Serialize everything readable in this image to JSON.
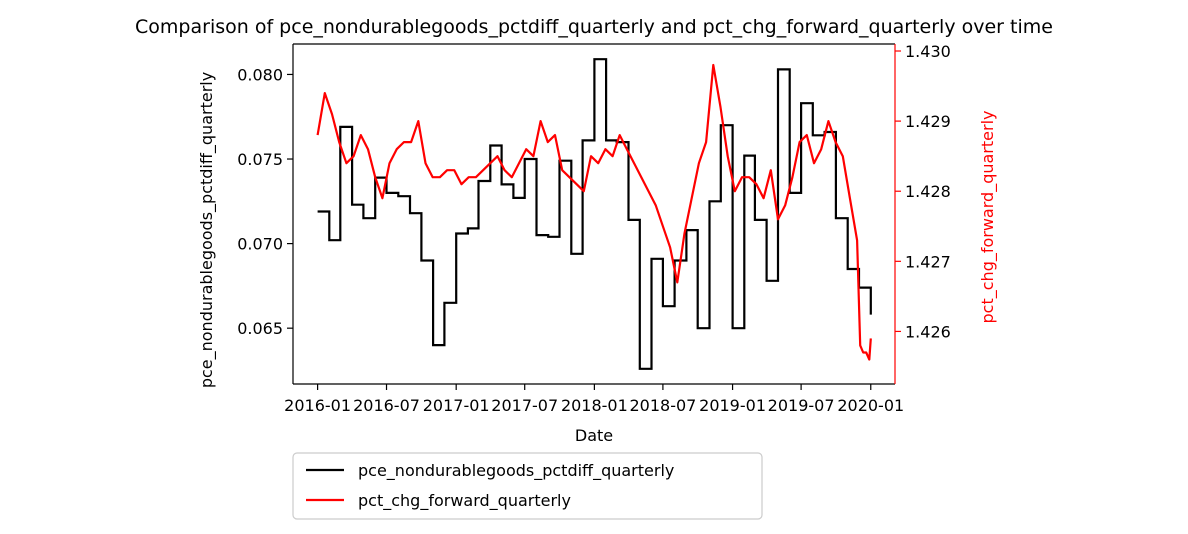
{
  "chart_data": {
    "type": "line",
    "title": "Comparison of pce_nondurablegoods_pctdiff_quarterly and pct_chg_forward_quarterly over time",
    "xlabel": "Date",
    "ylabel_left": "pce_nondurablegoods_pctdiff_quarterly",
    "ylabel_right": "pct_chg_forward_quarterly",
    "x_ticks": [
      "2016-01",
      "2016-07",
      "2017-01",
      "2017-07",
      "2018-01",
      "2018-07",
      "2019-01",
      "2019-07",
      "2020-01"
    ],
    "xlim": [
      "2015-10-28",
      "2020-03-05"
    ],
    "y_left_ticks": [
      "0.065",
      "0.070",
      "0.075",
      "0.080"
    ],
    "y_left_lim": [
      0.0617,
      0.0818
    ],
    "y_right_ticks": [
      "1.426",
      "1.427",
      "1.428",
      "1.429",
      "1.430"
    ],
    "y_right_lim": [
      1.42525,
      1.4301
    ],
    "legend_placement": "below",
    "colors": {
      "left": "#000000",
      "right": "#ff0000"
    },
    "series": [
      {
        "name": "pce_nondurablegoods_pctdiff_quarterly",
        "axis": "left",
        "style": "step",
        "x": [
          "2016-01-01",
          "2016-02-01",
          "2016-03-01",
          "2016-04-01",
          "2016-05-01",
          "2016-06-01",
          "2016-07-01",
          "2016-08-01",
          "2016-09-01",
          "2016-10-01",
          "2016-11-01",
          "2016-12-01",
          "2017-01-01",
          "2017-02-01",
          "2017-03-01",
          "2017-04-01",
          "2017-05-01",
          "2017-06-01",
          "2017-07-01",
          "2017-08-01",
          "2017-09-01",
          "2017-10-01",
          "2017-11-01",
          "2017-12-01",
          "2018-01-01",
          "2018-02-01",
          "2018-03-01",
          "2018-04-01",
          "2018-05-01",
          "2018-06-01",
          "2018-07-01",
          "2018-08-01",
          "2018-09-01",
          "2018-10-01",
          "2018-11-01",
          "2018-12-01",
          "2019-01-01",
          "2019-02-01",
          "2019-03-01",
          "2019-04-01",
          "2019-05-01",
          "2019-06-01",
          "2019-07-01",
          "2019-08-01",
          "2019-09-01",
          "2019-10-01",
          "2019-11-01",
          "2019-12-01",
          "2020-01-01"
        ],
        "values": [
          0.0719,
          0.0702,
          0.0769,
          0.0723,
          0.0715,
          0.0739,
          0.073,
          0.0728,
          0.0718,
          0.069,
          0.064,
          0.0665,
          0.0706,
          0.0709,
          0.0737,
          0.0758,
          0.0735,
          0.0727,
          0.075,
          0.0705,
          0.0704,
          0.0749,
          0.0694,
          0.0761,
          0.0809,
          0.0761,
          0.076,
          0.0714,
          0.0626,
          0.0691,
          0.0663,
          0.069,
          0.0708,
          0.065,
          0.0725,
          0.077,
          0.065,
          0.0752,
          0.0714,
          0.0678,
          0.0803,
          0.073,
          0.0783,
          0.0764,
          0.0766,
          0.0715,
          0.0685,
          0.0674,
          0.0658
        ]
      },
      {
        "name": "pct_chg_forward_quarterly",
        "axis": "right",
        "style": "line",
        "x": [
          "2016-01-01",
          "2016-01-20",
          "2016-02-08",
          "2016-02-27",
          "2016-03-17",
          "2016-04-05",
          "2016-04-24",
          "2016-05-13",
          "2016-06-01",
          "2016-06-20",
          "2016-07-09",
          "2016-07-28",
          "2016-08-16",
          "2016-09-04",
          "2016-09-23",
          "2016-10-12",
          "2016-10-31",
          "2016-11-19",
          "2016-12-08",
          "2016-12-27",
          "2017-01-15",
          "2017-02-03",
          "2017-02-22",
          "2017-03-13",
          "2017-04-01",
          "2017-04-20",
          "2017-05-09",
          "2017-05-28",
          "2017-06-16",
          "2017-07-05",
          "2017-07-24",
          "2017-08-12",
          "2017-08-31",
          "2017-09-19",
          "2017-10-08",
          "2017-10-27",
          "2017-11-15",
          "2017-12-04",
          "2017-12-23",
          "2018-01-11",
          "2018-01-30",
          "2018-02-18",
          "2018-03-09",
          "2018-03-28",
          "2018-04-16",
          "2018-05-05",
          "2018-05-24",
          "2018-06-12",
          "2018-07-01",
          "2018-07-20",
          "2018-08-08",
          "2018-08-27",
          "2018-09-15",
          "2018-10-04",
          "2018-10-23",
          "2018-11-11",
          "2018-11-30",
          "2018-12-19",
          "2019-01-07",
          "2019-01-26",
          "2019-02-14",
          "2019-03-05",
          "2019-03-24",
          "2019-04-12",
          "2019-05-01",
          "2019-05-20",
          "2019-06-08",
          "2019-06-27",
          "2019-07-16",
          "2019-08-04",
          "2019-08-23",
          "2019-09-11",
          "2019-09-30",
          "2019-10-19",
          "2019-11-07",
          "2019-11-26",
          "2019-12-04",
          "2019-12-12",
          "2019-12-20",
          "2019-12-28",
          "2020-01-01"
        ],
        "values": [
          1.4288,
          1.4294,
          1.4291,
          1.4287,
          1.4284,
          1.4285,
          1.4288,
          1.4286,
          1.4282,
          1.4279,
          1.4284,
          1.4286,
          1.4287,
          1.4287,
          1.429,
          1.4284,
          1.4282,
          1.4282,
          1.4283,
          1.4283,
          1.4281,
          1.4282,
          1.4282,
          1.4283,
          1.4284,
          1.4285,
          1.4283,
          1.4282,
          1.4284,
          1.4286,
          1.4285,
          1.429,
          1.4287,
          1.4288,
          1.4283,
          1.4282,
          1.4281,
          1.428,
          1.4285,
          1.4284,
          1.4286,
          1.4285,
          1.4288,
          1.4286,
          1.4284,
          1.4282,
          1.428,
          1.4278,
          1.4275,
          1.4272,
          1.4267,
          1.4274,
          1.4279,
          1.4284,
          1.4287,
          1.4298,
          1.4292,
          1.4285,
          1.428,
          1.4282,
          1.4282,
          1.4281,
          1.4279,
          1.4283,
          1.4276,
          1.4278,
          1.4282,
          1.4287,
          1.4288,
          1.4284,
          1.4286,
          1.429,
          1.4287,
          1.4285,
          1.4279,
          1.4273,
          1.4258,
          1.4257,
          1.4257,
          1.4256,
          1.4259
        ]
      }
    ]
  }
}
